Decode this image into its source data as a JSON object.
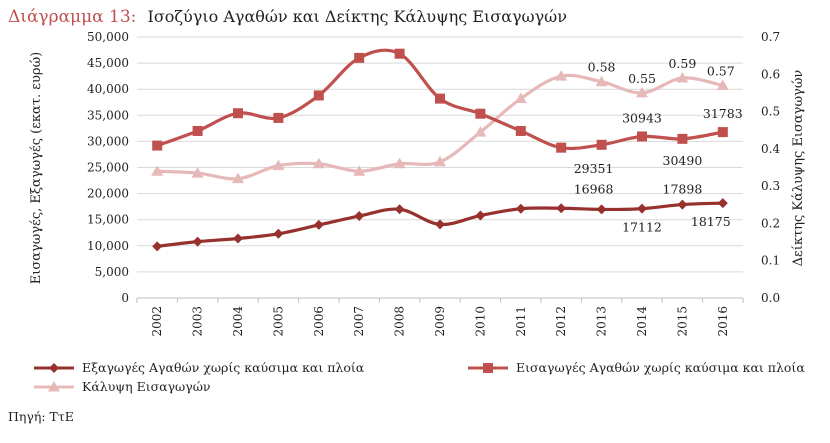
{
  "chart_data": {
    "type": "line",
    "title_prefix": "Διάγραμμα 13:",
    "title": "Ισοζύγιο Αγαθών και Δείκτης Κάλυψης Εισαγωγών",
    "x": [
      "2002",
      "2003",
      "2004",
      "2005",
      "2006",
      "2007",
      "2008",
      "2009",
      "2010",
      "2011",
      "2012",
      "2013",
      "2014",
      "2015",
      "2016"
    ],
    "ylabel_left": "Εισαγωγές, Εξαγωγές (εκατ. ευρώ)",
    "ylabel_right": "Δείκτης Κάλυψης Εισαγωγών",
    "ylim_left": [
      0,
      50000
    ],
    "yticks_left": [
      "0",
      "5,000",
      "10,000",
      "15,000",
      "20,000",
      "25,000",
      "30,000",
      "35,000",
      "40,000",
      "45,000",
      "50,000"
    ],
    "ylim_right": [
      0,
      0.7
    ],
    "yticks_right": [
      "0.0",
      "0.1",
      "0.2",
      "0.3",
      "0.4",
      "0.5",
      "0.6",
      "0.7"
    ],
    "grid": true,
    "legend_position": "bottom",
    "series": [
      {
        "name": "Εξαγωγές Αγαθών χωρίς καύσιμα και πλοία",
        "axis": "left",
        "marker": "diamond",
        "color": "#96312e",
        "values": [
          9900,
          10800,
          11400,
          12300,
          14000,
          15700,
          17000,
          14100,
          15800,
          17100,
          17200,
          16968,
          17112,
          17898,
          18175
        ]
      },
      {
        "name": "Εισαγωγές Αγαθών χωρίς καύσιμα και πλοία",
        "axis": "left",
        "marker": "square",
        "color": "#c0504d",
        "values": [
          29200,
          32000,
          35400,
          34500,
          38800,
          46000,
          46800,
          38200,
          35300,
          32000,
          28800,
          29351,
          30943,
          30490,
          31783
        ]
      },
      {
        "name": "Κάλυψη Εισαγωγών",
        "axis": "right",
        "marker": "triangle",
        "color": "#e6b9b8",
        "values": [
          0.34,
          0.335,
          0.32,
          0.355,
          0.36,
          0.34,
          0.36,
          0.365,
          0.445,
          0.535,
          0.595,
          0.58,
          0.55,
          0.59,
          0.57
        ]
      }
    ],
    "annotations": [
      {
        "text": "0.58",
        "series": 2,
        "index": 11
      },
      {
        "text": "0.55",
        "series": 2,
        "index": 12
      },
      {
        "text": "0.59",
        "series": 2,
        "index": 13
      },
      {
        "text": "0.57",
        "series": 2,
        "index": 14
      },
      {
        "text": "30943",
        "series": 1,
        "index": 12
      },
      {
        "text": "31783",
        "series": 1,
        "index": 14
      },
      {
        "text": "29351",
        "series": 1,
        "index": 11
      },
      {
        "text": "30490",
        "series": 1,
        "index": 13
      },
      {
        "text": "16968",
        "series": 0,
        "index": 11
      },
      {
        "text": "17898",
        "series": 0,
        "index": 13
      },
      {
        "text": "17112",
        "series": 0,
        "index": 12
      },
      {
        "text": "18175",
        "series": 0,
        "index": 14
      }
    ]
  },
  "source": "Πηγή: ΤτΕ"
}
